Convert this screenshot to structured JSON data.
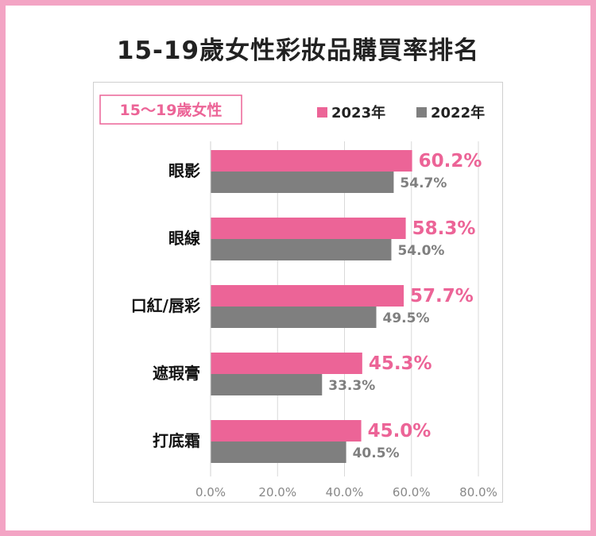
{
  "title": "15-19歲女性彩妝品購買率排名",
  "chart_data": {
    "type": "bar",
    "orientation": "horizontal",
    "tag": "15～19歲女性",
    "categories": [
      "眼影",
      "眼線",
      "口紅/唇彩",
      "遮瑕膏",
      "打底霜"
    ],
    "series": [
      {
        "name": "2023年",
        "color": "#ec6497",
        "values": [
          60.2,
          58.3,
          57.7,
          45.3,
          45.0
        ],
        "labels": [
          "60.2%",
          "58.3%",
          "57.7%",
          "45.3%",
          "45.0%"
        ]
      },
      {
        "name": "2022年",
        "color": "#7f7f7f",
        "values": [
          54.7,
          54.0,
          49.5,
          33.3,
          40.5
        ],
        "labels": [
          "54.7%",
          "54.0%",
          "49.5%",
          "33.3%",
          "40.5%"
        ]
      }
    ],
    "xlim": [
      0,
      80
    ],
    "xticks": [
      "0.0%",
      "20.0%",
      "40.0%",
      "60.0%",
      "80.0%"
    ],
    "grid": true,
    "legend": "top-right"
  }
}
